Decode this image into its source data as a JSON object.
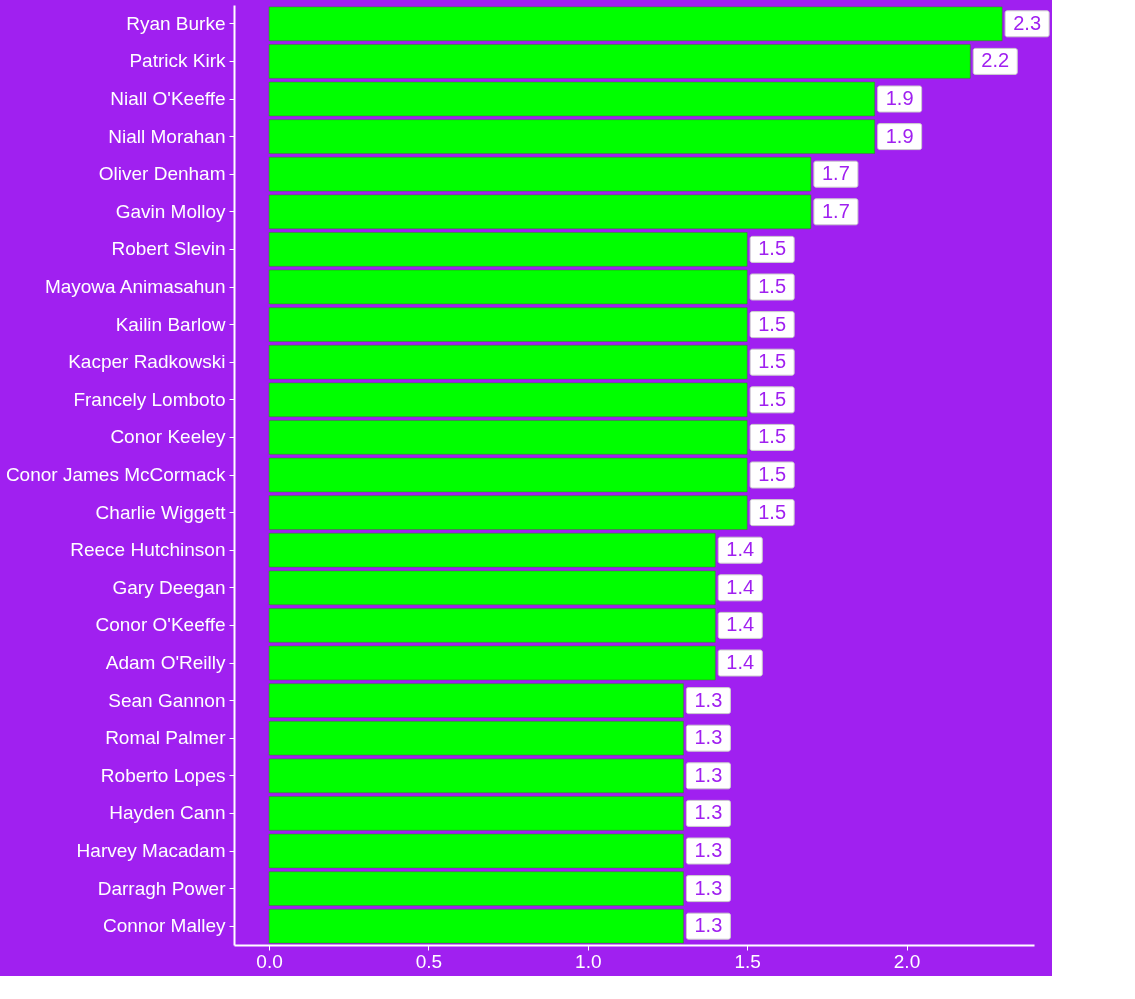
{
  "chart_data": {
    "type": "bar",
    "orientation": "horizontal",
    "categories": [
      "Ryan Burke",
      "Patrick Kirk",
      "Niall O'Keeffe",
      "Niall Morahan",
      "Oliver Denham",
      "Gavin Molloy",
      "Robert Slevin",
      "Mayowa Animasahun",
      "Kailin Barlow",
      "Kacper Radkowski",
      "Francely Lomboto",
      "Conor Keeley",
      "Conor James McCormack",
      "Charlie Wiggett",
      "Reece Hutchinson",
      "Gary Deegan",
      "Conor O'Keeffe",
      "Adam O'Reilly",
      "Sean Gannon",
      "Romal Palmer",
      "Roberto Lopes",
      "Hayden Cann",
      "Harvey Macadam",
      "Darragh Power",
      "Connor Malley"
    ],
    "values": [
      2.3,
      2.2,
      1.9,
      1.9,
      1.7,
      1.7,
      1.5,
      1.5,
      1.5,
      1.5,
      1.5,
      1.5,
      1.5,
      1.5,
      1.4,
      1.4,
      1.4,
      1.4,
      1.3,
      1.3,
      1.3,
      1.3,
      1.3,
      1.3,
      1.3
    ],
    "color": "#00ff00",
    "xlim": [
      -0.11,
      2.4
    ],
    "xticks": [
      {
        "value": 0,
        "label": "0.0"
      },
      {
        "value": 0.5,
        "label": "0.5"
      },
      {
        "value": 1,
        "label": "1.0"
      },
      {
        "value": 1.5,
        "label": "1.5"
      },
      {
        "value": 2,
        "label": "2.0"
      }
    ],
    "data_labels": true,
    "grid": false
  }
}
